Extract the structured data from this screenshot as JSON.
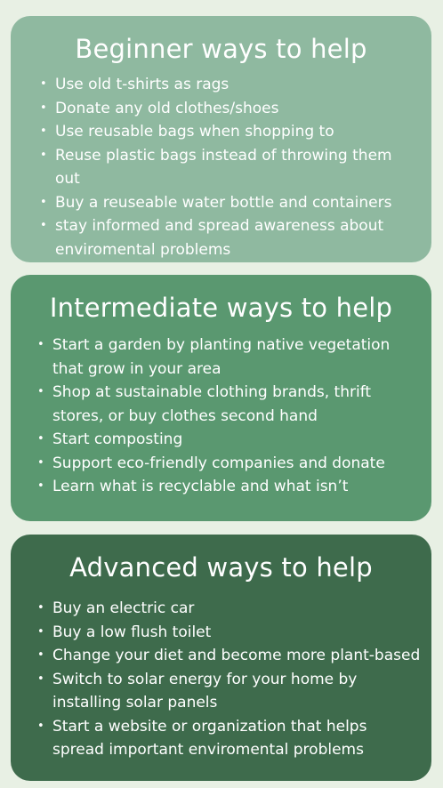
{
  "beginner": {
    "title": "Beginner ways to help",
    "items": [
      "Use old t-shirts as rags",
      "Donate any old clothes/shoes",
      "Use reusable bags when shopping to",
      "Reuse plastic bags instead of throwing them out",
      "Buy a reuseable water bottle and containers",
      "stay informed and spread awareness about enviromental problems"
    ]
  },
  "intermediate": {
    "title": "Intermediate ways to help",
    "items": [
      "Start a garden by planting native vegetation that grow in your area",
      "Shop at sustainable clothing brands, thrift stores, or buy clothes second hand",
      "Start composting",
      "Support eco-friendly companies and donate",
      "Learn what is recyclable and what isn’t"
    ]
  },
  "advanced": {
    "title": "Advanced ways to help",
    "items": [
      "Buy an electric car",
      "Buy a low flush toilet",
      "Change your diet and become more plant-based",
      "Switch to solar energy for your home by installing solar panels",
      "Start a website or organization that helps spread important enviromental problems"
    ]
  },
  "bullet_char": "•",
  "colors": {
    "background": "#e8f0e4",
    "beginner_card": "#8fb9a0",
    "intermediate_card": "#5a9870",
    "advanced_card": "#3e6b4c",
    "text": "#ffffff"
  }
}
